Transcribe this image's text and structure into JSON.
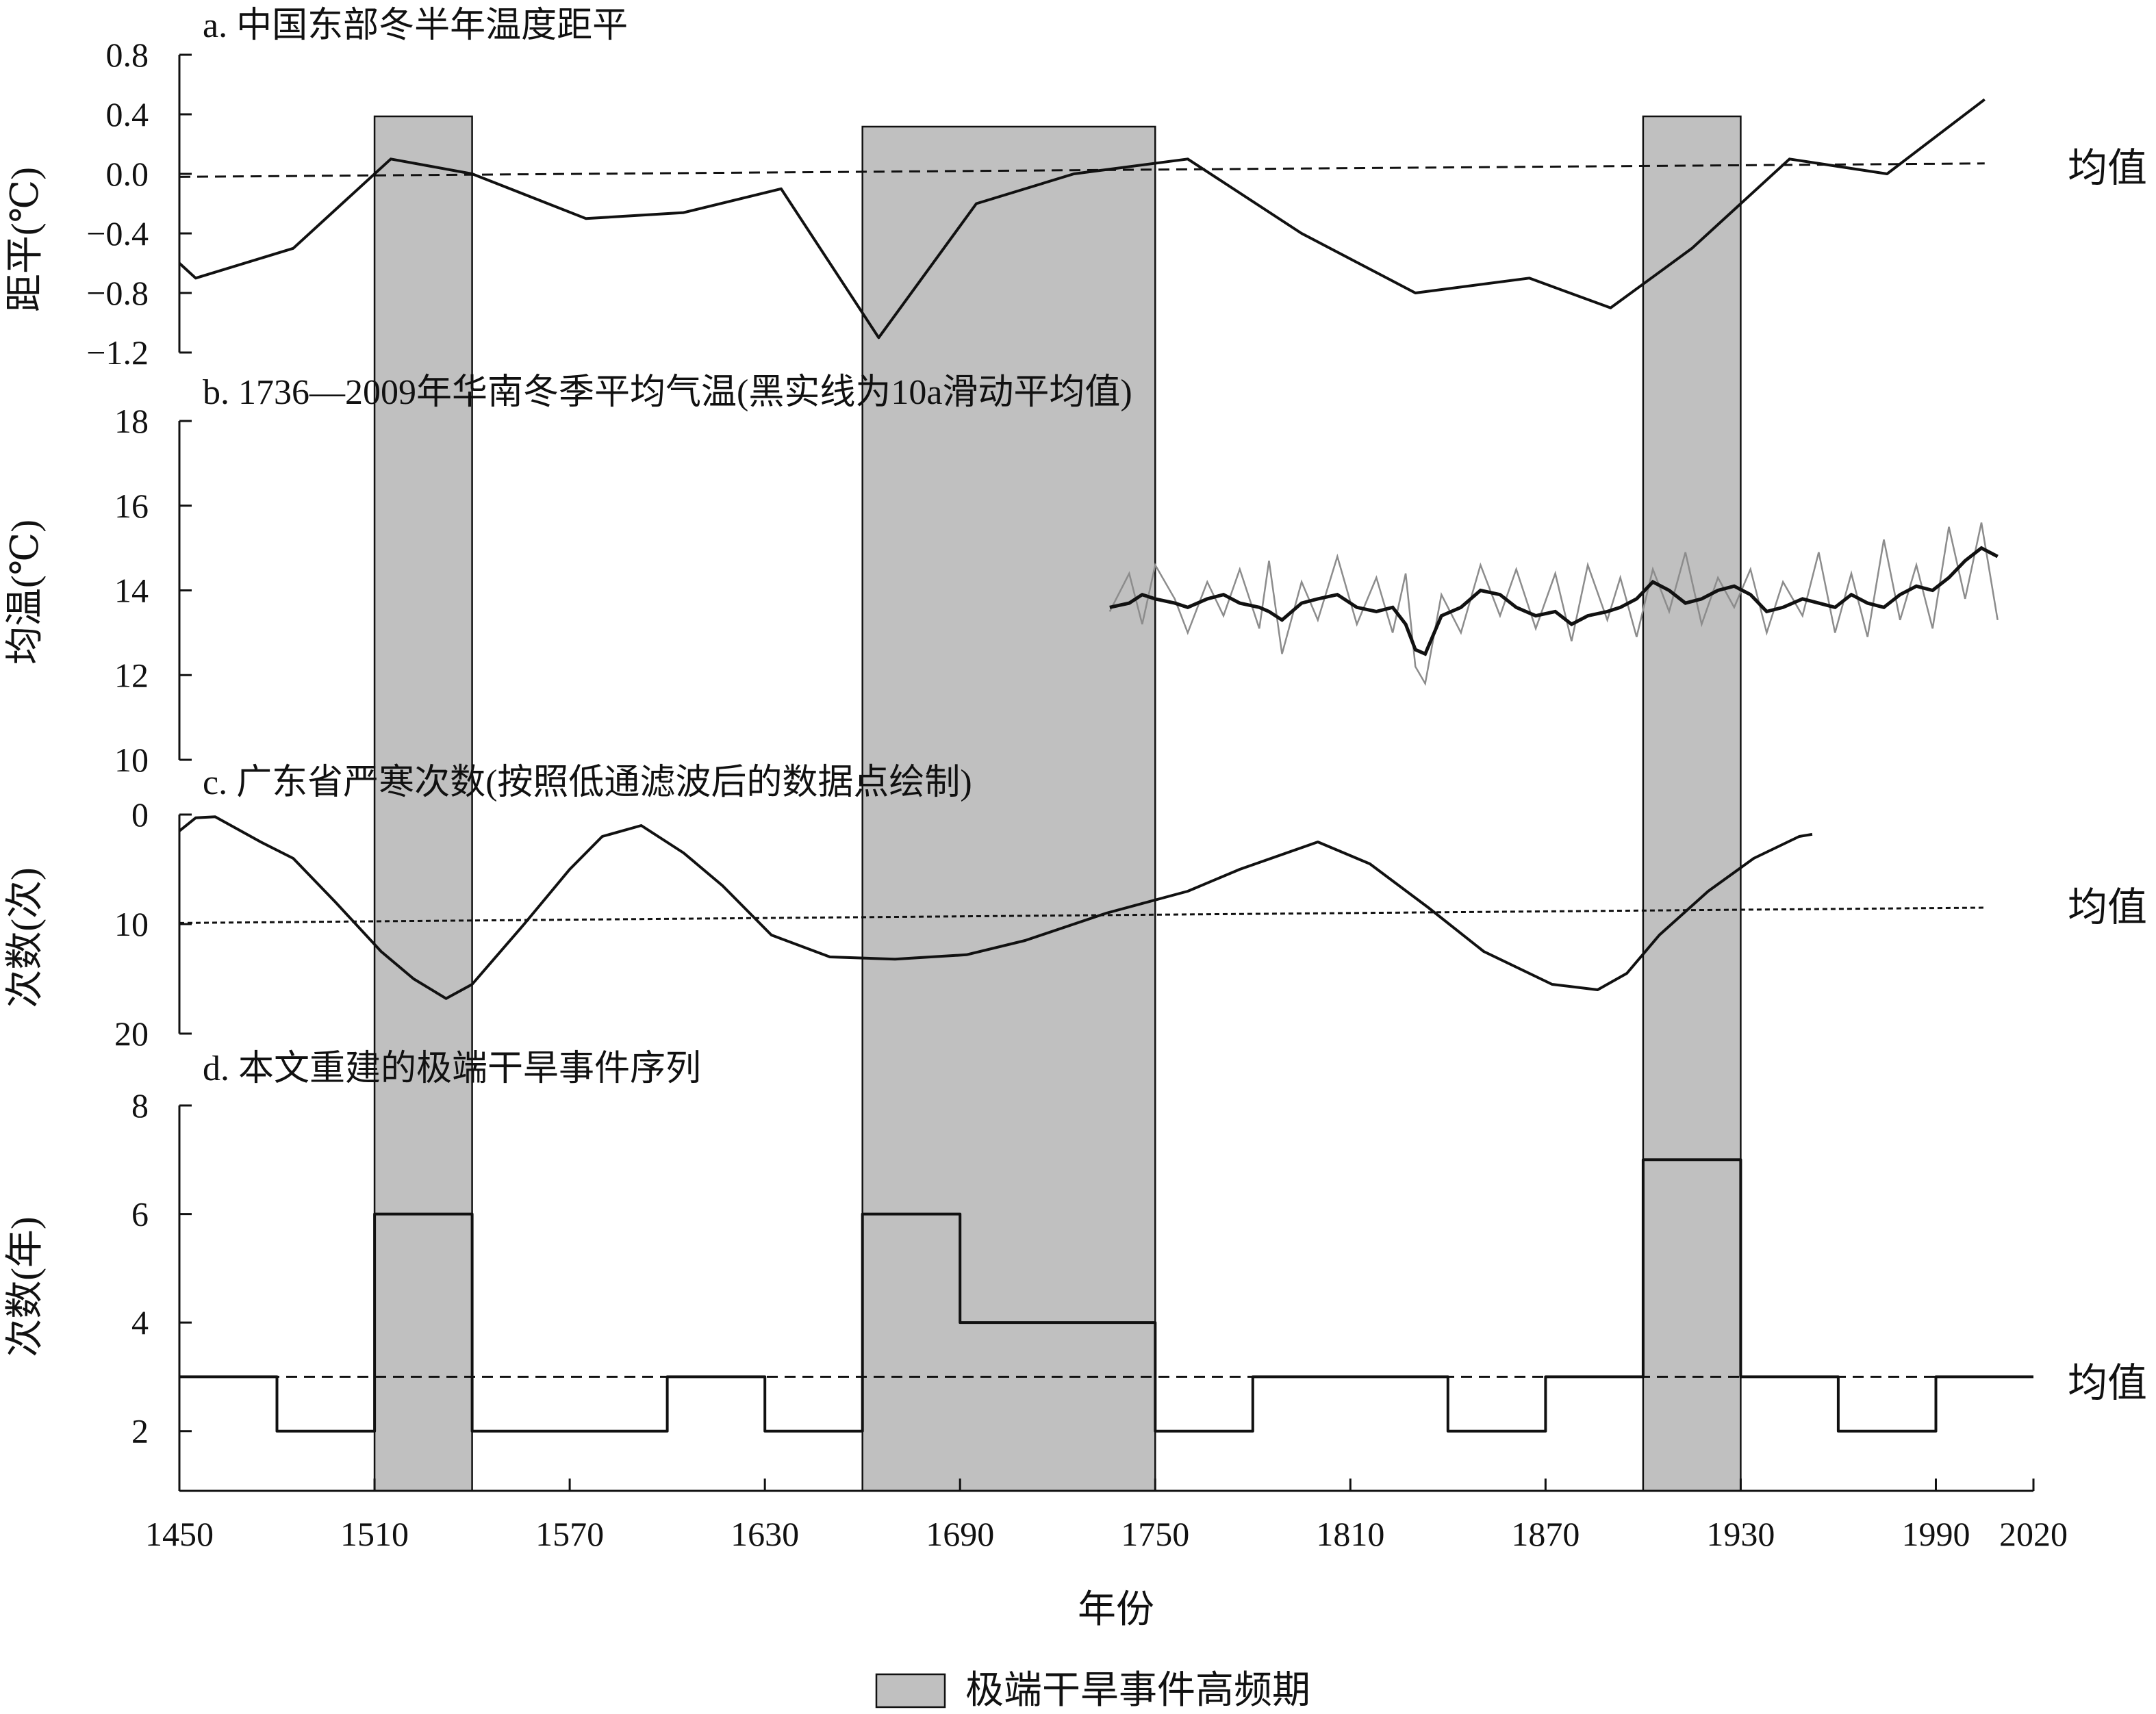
{
  "chart_data": [
    {
      "panel": "a",
      "type": "line",
      "title": "a. 中国东部冬半年温度距平",
      "ylabel": "距平(℃)",
      "ylim": [
        -1.2,
        0.8
      ],
      "yticks": [
        0.8,
        0.4,
        0.0,
        -0.4,
        -0.8,
        -1.2
      ],
      "ytick_labels": [
        "0.8",
        "0.4",
        "0.0",
        "−0.4",
        "−0.8",
        "−1.2"
      ],
      "series": [
        {
          "x": [
            1450,
            1455,
            1485,
            1515,
            1540,
            1575,
            1605,
            1635,
            1665,
            1695,
            1725,
            1760,
            1795,
            1830,
            1865,
            1890,
            1915,
            1945,
            1975,
            2005
          ],
          "y": [
            -0.6,
            -0.7,
            -0.5,
            0.1,
            0.0,
            -0.3,
            -0.26,
            -0.1,
            -1.1,
            -0.2,
            0.0,
            0.1,
            -0.4,
            -0.8,
            -0.7,
            -0.9,
            -0.5,
            0.1,
            0.0,
            0.5
          ]
        }
      ],
      "mean": {
        "label": "均值",
        "y_start": -0.02,
        "y_end": 0.07,
        "x_start": 1450,
        "x_end": 2005,
        "style": "dashed"
      }
    },
    {
      "panel": "b",
      "type": "line",
      "title": "b. 1736—2009年华南冬季平均气温(黑实线为10a滑动平均值)",
      "ylabel": "均温(℃)",
      "ylim": [
        10,
        18
      ],
      "yticks": [
        18,
        16,
        14,
        12,
        10
      ],
      "ytick_labels": [
        "18",
        "16",
        "14",
        "12",
        "10"
      ],
      "series": [
        {
          "style": "raw",
          "x": [
            1736,
            1742,
            1746,
            1750,
            1756,
            1760,
            1766,
            1771,
            1776,
            1782,
            1785,
            1789,
            1795,
            1800,
            1806,
            1812,
            1818,
            1823,
            1827,
            1830,
            1833,
            1838,
            1844,
            1850,
            1856,
            1861,
            1867,
            1873,
            1878,
            1883,
            1889,
            1893,
            1898,
            1903,
            1908,
            1913,
            1918,
            1923,
            1928,
            1933,
            1938,
            1943,
            1949,
            1954,
            1959,
            1964,
            1969,
            1974,
            1979,
            1984,
            1989,
            1994,
            1999,
            2004,
            2009
          ],
          "y": [
            13.5,
            14.4,
            13.2,
            14.6,
            13.8,
            13.0,
            14.2,
            13.4,
            14.5,
            13.1,
            14.7,
            12.5,
            14.2,
            13.3,
            14.8,
            13.2,
            14.3,
            13.0,
            14.4,
            12.2,
            11.8,
            13.9,
            13.0,
            14.6,
            13.4,
            14.5,
            13.1,
            14.4,
            12.8,
            14.6,
            13.3,
            14.3,
            12.9,
            14.5,
            13.5,
            14.9,
            13.2,
            14.3,
            13.6,
            14.5,
            13.0,
            14.2,
            13.4,
            14.9,
            13.0,
            14.4,
            12.9,
            15.2,
            13.3,
            14.6,
            13.1,
            15.5,
            13.8,
            15.6,
            13.3
          ]
        },
        {
          "style": "smoothed",
          "x": [
            1736,
            1742,
            1746,
            1750,
            1756,
            1760,
            1766,
            1771,
            1776,
            1782,
            1785,
            1789,
            1795,
            1800,
            1806,
            1812,
            1818,
            1823,
            1827,
            1830,
            1833,
            1838,
            1844,
            1850,
            1856,
            1861,
            1867,
            1873,
            1878,
            1883,
            1889,
            1893,
            1898,
            1903,
            1908,
            1913,
            1918,
            1923,
            1928,
            1933,
            1938,
            1943,
            1949,
            1954,
            1959,
            1964,
            1969,
            1974,
            1979,
            1984,
            1989,
            1994,
            1999,
            2004,
            2009
          ],
          "y": [
            13.6,
            13.7,
            13.9,
            13.8,
            13.7,
            13.6,
            13.8,
            13.9,
            13.7,
            13.6,
            13.5,
            13.3,
            13.7,
            13.8,
            13.9,
            13.6,
            13.5,
            13.6,
            13.2,
            12.6,
            12.5,
            13.4,
            13.6,
            14.0,
            13.9,
            13.6,
            13.4,
            13.5,
            13.2,
            13.4,
            13.5,
            13.6,
            13.8,
            14.2,
            14.0,
            13.7,
            13.8,
            14.0,
            14.1,
            13.9,
            13.5,
            13.6,
            13.8,
            13.7,
            13.6,
            13.9,
            13.7,
            13.6,
            13.9,
            14.1,
            14.0,
            14.3,
            14.7,
            15.0,
            14.8
          ]
        }
      ]
    },
    {
      "panel": "c",
      "type": "line",
      "title": "c. 广东省严寒次数(按照低通滤波后的数据点绘制)",
      "ylabel": "次数(次)",
      "ylim": [
        0,
        20
      ],
      "y_inverted": true,
      "yticks": [
        0,
        10,
        20
      ],
      "ytick_labels": [
        "0",
        "10",
        "20"
      ],
      "series": [
        {
          "x": [
            1450,
            1455,
            1461,
            1475,
            1485,
            1498,
            1512,
            1522,
            1532,
            1540,
            1556,
            1570,
            1580,
            1592,
            1605,
            1617,
            1632,
            1650,
            1670,
            1692,
            1710,
            1735,
            1760,
            1776,
            1800,
            1816,
            1834,
            1851,
            1872,
            1886,
            1895,
            1905,
            1920,
            1934,
            1948,
            1952
          ],
          "y": [
            1.5,
            0.3,
            0.2,
            2.5,
            4.0,
            8.0,
            12.5,
            15.0,
            16.8,
            15.5,
            10.0,
            5.0,
            2.0,
            1.0,
            3.5,
            6.5,
            11.0,
            13.0,
            13.2,
            12.8,
            11.5,
            9.0,
            7.0,
            5.0,
            2.5,
            4.5,
            8.5,
            12.5,
            15.5,
            16.0,
            14.5,
            11.0,
            7.0,
            4.0,
            2.0,
            1.8
          ]
        }
      ],
      "mean": {
        "label": "均值",
        "y_start": 9.9,
        "y_end": 8.5,
        "x_start": 1450,
        "x_end": 2005,
        "style": "dotted"
      }
    },
    {
      "panel": "d",
      "type": "step",
      "title": "d. 本文重建的极端干旱事件序列",
      "ylabel": "次数(年)",
      "ylim": [
        1,
        8
      ],
      "yticks": [
        8,
        6,
        4,
        2
      ],
      "ytick_labels": [
        "8",
        "6",
        "4",
        "2"
      ],
      "bins": [
        {
          "start": 1450,
          "end": 1480,
          "value": 3
        },
        {
          "start": 1480,
          "end": 1510,
          "value": 2
        },
        {
          "start": 1510,
          "end": 1540,
          "value": 6
        },
        {
          "start": 1540,
          "end": 1570,
          "value": 2
        },
        {
          "start": 1570,
          "end": 1600,
          "value": 2
        },
        {
          "start": 1600,
          "end": 1630,
          "value": 3
        },
        {
          "start": 1630,
          "end": 1660,
          "value": 2
        },
        {
          "start": 1660,
          "end": 1690,
          "value": 6
        },
        {
          "start": 1690,
          "end": 1720,
          "value": 4
        },
        {
          "start": 1720,
          "end": 1750,
          "value": 4
        },
        {
          "start": 1750,
          "end": 1780,
          "value": 2
        },
        {
          "start": 1780,
          "end": 1810,
          "value": 3
        },
        {
          "start": 1810,
          "end": 1840,
          "value": 3
        },
        {
          "start": 1840,
          "end": 1870,
          "value": 2
        },
        {
          "start": 1870,
          "end": 1900,
          "value": 3
        },
        {
          "start": 1900,
          "end": 1930,
          "value": 7
        },
        {
          "start": 1930,
          "end": 1960,
          "value": 3
        },
        {
          "start": 1960,
          "end": 1990,
          "value": 2
        },
        {
          "start": 1990,
          "end": 2020,
          "value": 3
        }
      ],
      "mean": {
        "label": "均值",
        "y": 3,
        "x_start": 1450,
        "x_end": 2020,
        "style": "dashed"
      }
    }
  ],
  "shaded_periods": [
    {
      "start": 1510,
      "end": 1540
    },
    {
      "start": 1660,
      "end": 1750
    },
    {
      "start": 1900,
      "end": 1930
    }
  ],
  "x_axis": {
    "title": "年份",
    "xlim": [
      1450,
      2020
    ],
    "ticks": [
      1450,
      1510,
      1570,
      1630,
      1690,
      1750,
      1810,
      1870,
      1930,
      1990,
      2020
    ],
    "tick_labels": [
      "1450",
      "1510",
      "1570",
      "1630",
      "1690",
      "1750",
      "1810",
      "1870",
      "1930",
      "1990",
      "2020"
    ]
  },
  "legend": {
    "label": "极端干旱事件高频期",
    "color": "#c0c0c0",
    "placement": "bottom-center"
  },
  "colors": {
    "shade": "#c0c0c0",
    "raw_series": "#8c8c8c",
    "line": "#111111"
  }
}
